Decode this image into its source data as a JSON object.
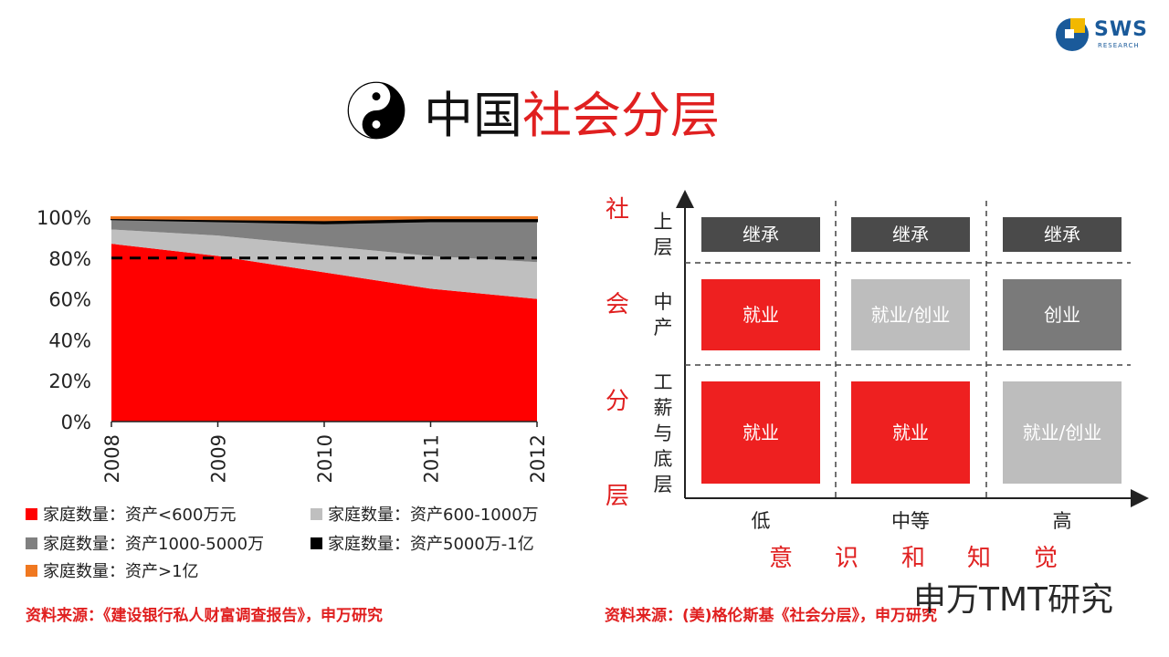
{
  "logo": {
    "text": "SWS",
    "sub": "RESEARCH"
  },
  "title": {
    "part1": "中国",
    "part2": "社会分层",
    "icon": "yin-yang-icon"
  },
  "chart_data": {
    "type": "area",
    "stacked": true,
    "x": [
      "2008",
      "2009",
      "2010",
      "2011",
      "2012"
    ],
    "yticks": [
      "0%",
      "20%",
      "40%",
      "60%",
      "80%",
      "100%"
    ],
    "ylim": [
      0,
      100
    ],
    "reference_line": {
      "y": 80,
      "style": "dashed"
    },
    "series": [
      {
        "name": "家庭数量：资产<600万元",
        "color": "#ff0000",
        "values": [
          87,
          81,
          73,
          65,
          60
        ]
      },
      {
        "name": "家庭数量：资产600-1000万",
        "color": "#bfbfbf",
        "values": [
          7,
          10,
          13,
          16,
          18
        ]
      },
      {
        "name": "家庭数量：资产1000-5000万",
        "color": "#808080",
        "values": [
          5,
          7,
          11,
          17,
          20
        ]
      },
      {
        "name": "家庭数量：资产5000万-1亿",
        "color": "#000000",
        "values": [
          0.5,
          1,
          1.5,
          1.5,
          1.5
        ]
      },
      {
        "name": "家庭数量：资产>1亿",
        "color": "#f07820",
        "values": [
          0.5,
          1,
          1.5,
          0.5,
          0.5
        ]
      }
    ]
  },
  "source_left": "资料来源：《建设银行私人财富调查报告》，申万研究",
  "matrix": {
    "y_axis_title": [
      "社",
      "会",
      "分",
      "层"
    ],
    "row_labels": [
      [
        "上",
        "层"
      ],
      [
        "中",
        "产"
      ],
      [
        "工",
        "薪",
        "与",
        "底",
        "层"
      ]
    ],
    "col_labels": [
      "低",
      "中等",
      "高"
    ],
    "x_axis_title": [
      "意",
      "识",
      "和",
      "知",
      "觉"
    ],
    "cells": [
      [
        {
          "text": "继承",
          "color": "#4a4a4a"
        },
        {
          "text": "继承",
          "color": "#4a4a4a"
        },
        {
          "text": "继承",
          "color": "#4a4a4a"
        }
      ],
      [
        {
          "text": "就业",
          "color": "#ee2020"
        },
        {
          "text": "就业/创业",
          "color": "#bdbdbd"
        },
        {
          "text": "创业",
          "color": "#7a7a7a"
        }
      ],
      [
        {
          "text": "就业",
          "color": "#ee2020"
        },
        {
          "text": "就业",
          "color": "#ee2020"
        },
        {
          "text": "就业/创业",
          "color": "#bdbdbd"
        }
      ]
    ]
  },
  "source_right": "资料来源：(美)格伦斯基《社会分层》，申万研究",
  "watermark": "申万TMT研究"
}
